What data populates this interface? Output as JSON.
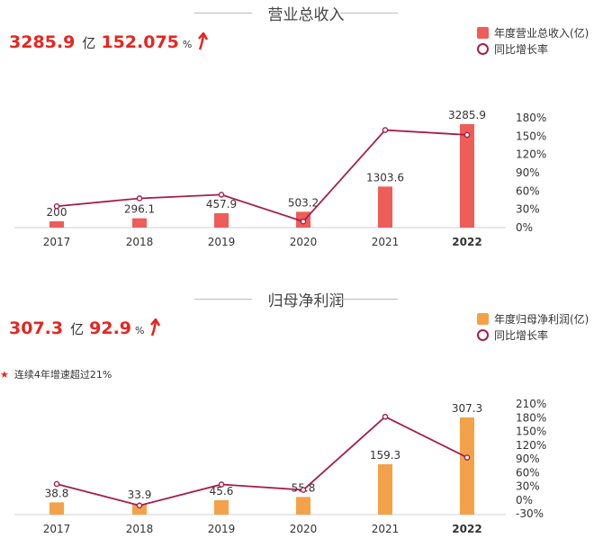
{
  "charts": [
    {
      "title": "营业总收入",
      "headline": {
        "value": "3285.9",
        "unit": "亿",
        "growth": "152.075",
        "growth_unit": "%"
      },
      "note": "",
      "colors": {
        "bar": "#ee5d57",
        "line": "#a61d4f"
      },
      "legend": {
        "bar_label": "年度营业总收入(亿)",
        "line_label": "同比增长率"
      },
      "chart_data": {
        "type": "bar+line",
        "categories": [
          "2017",
          "2018",
          "2019",
          "2020",
          "2021",
          "2022"
        ],
        "bar_values": [
          200,
          296.1,
          457.9,
          503.2,
          1303.6,
          3285.9
        ],
        "bar_labels": [
          "200",
          "296.1",
          "457.9",
          "503.2",
          "1303.6",
          "3285.9"
        ],
        "line_values": [
          35,
          48,
          54,
          10,
          160,
          152.075
        ],
        "y2_ticks": [
          "180%",
          "150%",
          "120%",
          "90%",
          "60%",
          "30%",
          "0%"
        ],
        "y2_range": [
          0,
          180
        ]
      }
    },
    {
      "title": "归母净利润",
      "headline": {
        "value": "307.3",
        "unit": "亿",
        "growth": "92.9",
        "growth_unit": "%"
      },
      "note": "连续4年增速超过21%",
      "colors": {
        "bar": "#f4a24a",
        "line": "#a61d4f"
      },
      "legend": {
        "bar_label": "年度归母净利润(亿)",
        "line_label": "同比增长率"
      },
      "chart_data": {
        "type": "bar+line",
        "categories": [
          "2017",
          "2018",
          "2019",
          "2020",
          "2021",
          "2022"
        ],
        "bar_values": [
          38.8,
          33.9,
          45.6,
          55.8,
          159.3,
          307.3
        ],
        "bar_labels": [
          "38.8",
          "33.9",
          "45.6",
          "55.8",
          "159.3",
          "307.3"
        ],
        "line_values": [
          35,
          -12,
          34,
          22,
          182,
          92.9
        ],
        "y2_ticks": [
          "210%",
          "180%",
          "150%",
          "120%",
          "90%",
          "60%",
          "30%",
          "0%",
          "-30%"
        ],
        "y2_range": [
          -30,
          210
        ]
      }
    }
  ]
}
